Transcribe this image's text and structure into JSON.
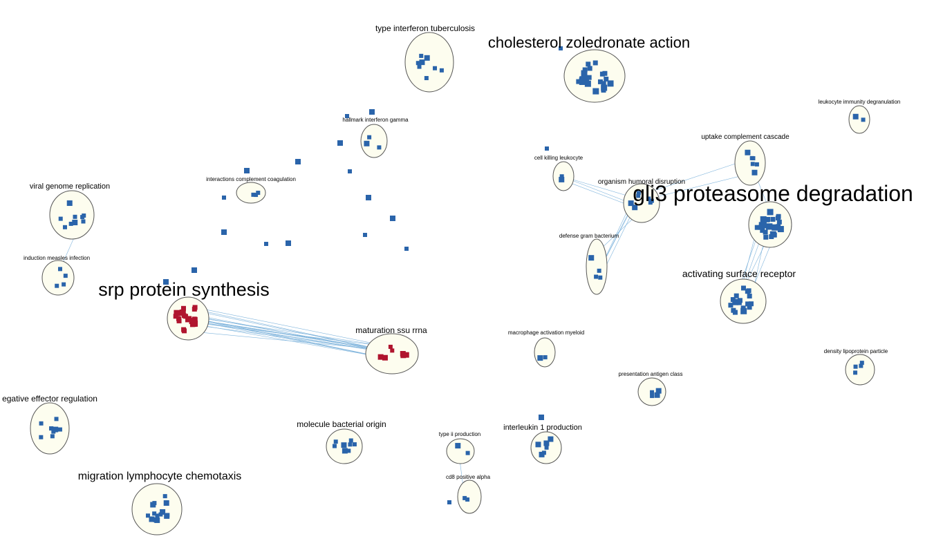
{
  "colors": {
    "background": "#ffffff",
    "cluster_fill": "#fdfdef",
    "cluster_stroke": "#555555",
    "node_blue": "#2a64aa",
    "node_red": "#b0152e",
    "edge": "#7fb4dc"
  },
  "clusters": [
    {
      "id": "c-type-interferon-tuberculosis",
      "label": "type interferon tuberculosis",
      "color": "blue"
    },
    {
      "id": "c-cholesterol-zoledronate-action",
      "label": "cholesterol zoledronate action",
      "color": "blue"
    },
    {
      "id": "c-leukocyte-immunity-degranulation",
      "label": "leukocyte immunity degranulation",
      "color": "blue"
    },
    {
      "id": "c-hallmark-interferon-gamma",
      "label": "hallmark interferon gamma",
      "color": "blue"
    },
    {
      "id": "c-uptake-complement-cascade",
      "label": "uptake complement cascade",
      "color": "blue"
    },
    {
      "id": "c-cell-killing-leukocyte",
      "label": "cell killing leukocyte",
      "color": "blue"
    },
    {
      "id": "c-interactions-complement-coagulation",
      "label": "interactions complement coagulation",
      "color": "blue"
    },
    {
      "id": "c-viral-genome-replication",
      "label": "viral genome replication",
      "color": "blue"
    },
    {
      "id": "c-organism-humoral-disruption",
      "label": "organism humoral disruption",
      "color": "blue"
    },
    {
      "id": "c-gli3-proteasome-degradation",
      "label": "gli3 proteasome degradation",
      "color": "blue"
    },
    {
      "id": "c-defense-gram-bacterium",
      "label": "defense gram bacterium",
      "color": "blue"
    },
    {
      "id": "c-induction-measles-infection",
      "label": "induction measles infection",
      "color": "blue"
    },
    {
      "id": "c-activating-surface-receptor",
      "label": "activating surface receptor",
      "color": "blue"
    },
    {
      "id": "c-srp-protein-synthesis",
      "label": "srp protein synthesis",
      "color": "red"
    },
    {
      "id": "c-maturation-ssu-rrna",
      "label": "maturation ssu rrna",
      "color": "red"
    },
    {
      "id": "c-macrophage-activation-myeloid",
      "label": "macrophage activation myeloid",
      "color": "blue"
    },
    {
      "id": "c-density-lipoprotein-particle",
      "label": "density lipoprotein particle",
      "color": "blue"
    },
    {
      "id": "c-presentation-antigen-class",
      "label": "presentation antigen class",
      "color": "blue"
    },
    {
      "id": "c-negative-effector-regulation",
      "label": "egative effector regulation",
      "color": "blue"
    },
    {
      "id": "c-molecule-bacterial-origin",
      "label": "molecule bacterial origin",
      "color": "blue"
    },
    {
      "id": "c-interleukin-1-production",
      "label": "interleukin 1 production",
      "color": "blue"
    },
    {
      "id": "c-type-ii-production",
      "label": "type ii production",
      "color": "blue"
    },
    {
      "id": "c-cd8-positive-alpha",
      "label": "cd8 positive alpha",
      "color": "blue"
    },
    {
      "id": "c-migration-lymphocyte-chemotaxis",
      "label": "migration lymphocyte chemotaxis",
      "color": "blue"
    }
  ]
}
